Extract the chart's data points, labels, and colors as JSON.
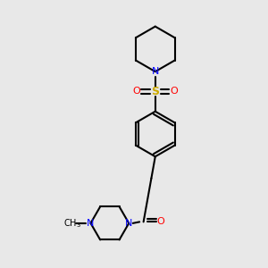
{
  "background_color": "#e8e8e8",
  "bond_color": "#000000",
  "nitrogen_color": "#0000ff",
  "oxygen_color": "#ff0000",
  "sulfur_color": "#ccaa00",
  "line_width": 1.5,
  "figsize": [
    3.0,
    3.0
  ],
  "dpi": 100,
  "xlim": [
    0,
    10
  ],
  "ylim": [
    0,
    10
  ]
}
